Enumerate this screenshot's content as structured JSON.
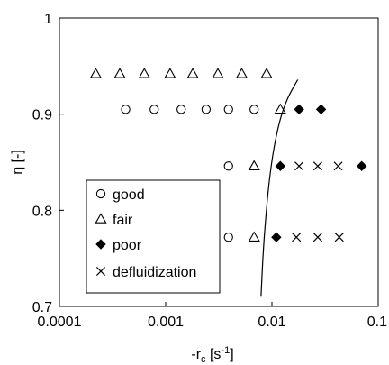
{
  "chart_data": {
    "type": "scatter",
    "title": "",
    "xlabel_main": "-r",
    "xlabel_sub": "c",
    "xlabel_unit_open": " [s",
    "xlabel_unit_exp": "-1",
    "xlabel_unit_close": "]",
    "ylabel": "η [-]",
    "x_scale": "log",
    "xlim": [
      0.0001,
      0.1
    ],
    "ylim": [
      0.7,
      1.0
    ],
    "grid": false,
    "legend_position": "bottom-left",
    "x_ticks": [
      {
        "value": 0.0001,
        "label": "0.0001"
      },
      {
        "value": 0.001,
        "label": "0.001"
      },
      {
        "value": 0.01,
        "label": "0.01"
      },
      {
        "value": 0.1,
        "label": "0.1"
      }
    ],
    "y_ticks": [
      {
        "value": 0.7,
        "label": "0.7"
      },
      {
        "value": 0.8,
        "label": "0.8"
      },
      {
        "value": 0.9,
        "label": "0.9"
      },
      {
        "value": 1.0,
        "label": "1"
      }
    ],
    "series": [
      {
        "name": "good",
        "marker": "open-circle",
        "points": [
          {
            "x": 0.00042,
            "y": 0.905
          },
          {
            "x": 0.00078,
            "y": 0.905
          },
          {
            "x": 0.0014,
            "y": 0.905
          },
          {
            "x": 0.0024,
            "y": 0.905
          },
          {
            "x": 0.0039,
            "y": 0.905
          },
          {
            "x": 0.0068,
            "y": 0.905
          },
          {
            "x": 0.0039,
            "y": 0.846
          },
          {
            "x": 0.0039,
            "y": 0.772
          }
        ]
      },
      {
        "name": "fair",
        "marker": "open-triangle",
        "points": [
          {
            "x": 0.00022,
            "y": 0.942
          },
          {
            "x": 0.00037,
            "y": 0.942
          },
          {
            "x": 0.00063,
            "y": 0.942
          },
          {
            "x": 0.0011,
            "y": 0.942
          },
          {
            "x": 0.0018,
            "y": 0.942
          },
          {
            "x": 0.0031,
            "y": 0.942
          },
          {
            "x": 0.0052,
            "y": 0.942
          },
          {
            "x": 0.0089,
            "y": 0.942
          },
          {
            "x": 0.012,
            "y": 0.905
          },
          {
            "x": 0.0068,
            "y": 0.846
          },
          {
            "x": 0.0068,
            "y": 0.772
          }
        ]
      },
      {
        "name": "poor",
        "marker": "filled-diamond",
        "points": [
          {
            "x": 0.018,
            "y": 0.905
          },
          {
            "x": 0.029,
            "y": 0.905
          },
          {
            "x": 0.012,
            "y": 0.846
          },
          {
            "x": 0.07,
            "y": 0.846
          },
          {
            "x": 0.011,
            "y": 0.772
          }
        ]
      },
      {
        "name": "defluidization",
        "marker": "cross",
        "points": [
          {
            "x": 0.018,
            "y": 0.846
          },
          {
            "x": 0.027,
            "y": 0.846
          },
          {
            "x": 0.042,
            "y": 0.846
          },
          {
            "x": 0.017,
            "y": 0.772
          },
          {
            "x": 0.027,
            "y": 0.772
          },
          {
            "x": 0.043,
            "y": 0.772
          }
        ]
      }
    ],
    "boundary_curve": [
      {
        "x": 0.0079,
        "y": 0.711
      },
      {
        "x": 0.0082,
        "y": 0.75
      },
      {
        "x": 0.0087,
        "y": 0.79
      },
      {
        "x": 0.0094,
        "y": 0.83
      },
      {
        "x": 0.0104,
        "y": 0.865
      },
      {
        "x": 0.0119,
        "y": 0.895
      },
      {
        "x": 0.014,
        "y": 0.917
      },
      {
        "x": 0.0175,
        "y": 0.936
      }
    ]
  }
}
